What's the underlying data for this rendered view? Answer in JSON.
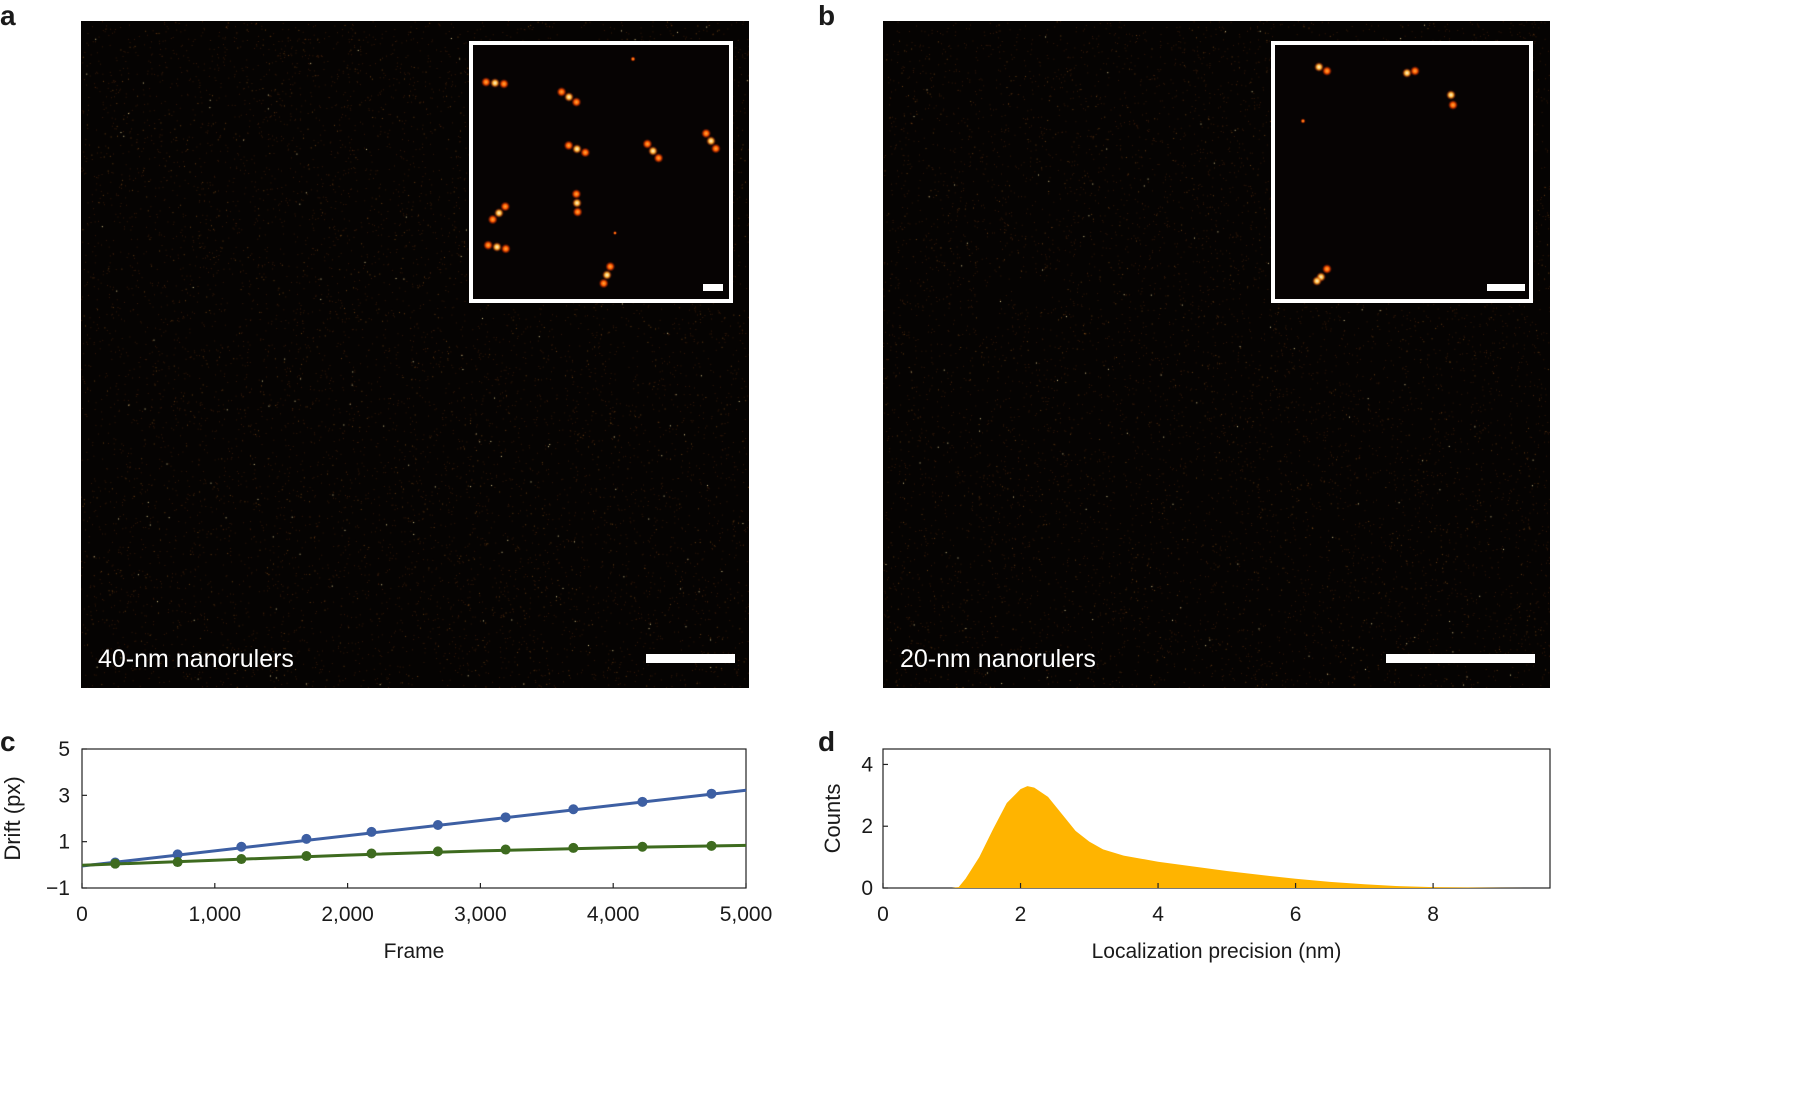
{
  "panels": {
    "a": {
      "letter": "a",
      "label": "40-nm nanorulers"
    },
    "b": {
      "letter": "b",
      "label": "20-nm nanorulers"
    },
    "c": {
      "letter": "c"
    },
    "d": {
      "letter": "d"
    }
  },
  "colors": {
    "background": "#050302",
    "blue_series": "#3d5fa3",
    "green_series": "#3e6b1f",
    "histogram": "#ffb400",
    "hot_spot": "#ff3a00",
    "white": "#ffffff"
  },
  "chart_data": [
    {
      "panel": "c",
      "type": "line",
      "xlabel": "Frame",
      "ylabel": "Drift (px)",
      "xlim": [
        0,
        5000
      ],
      "ylim": [
        -1,
        5
      ],
      "xticks": [
        0,
        1000,
        2000,
        3000,
        4000,
        5000
      ],
      "xtick_labels": [
        "0",
        "1,000",
        "2,000",
        "3,000",
        "4,000",
        "5,000"
      ],
      "yticks": [
        -1,
        1,
        3,
        5
      ],
      "ytick_labels": [
        "−1",
        "1",
        "3",
        "5"
      ],
      "x": [
        250,
        720,
        1200,
        1690,
        2180,
        2680,
        3190,
        3700,
        4220,
        4740
      ],
      "series": [
        {
          "color": "#3d5fa3",
          "values": [
            0.1,
            0.45,
            0.78,
            1.12,
            1.42,
            1.72,
            2.05,
            2.4,
            2.72,
            3.07
          ],
          "fit": [
            [
              0,
              -0.05
            ],
            [
              5000,
              3.22
            ]
          ]
        },
        {
          "color": "#3e6b1f",
          "values": [
            0.05,
            0.12,
            0.25,
            0.38,
            0.49,
            0.58,
            0.66,
            0.73,
            0.78,
            0.82
          ],
          "fit": [
            [
              0,
              -0.02
            ],
            [
              1000,
              0.2
            ],
            [
              2000,
              0.42
            ],
            [
              3000,
              0.6
            ],
            [
              4000,
              0.74
            ],
            [
              5000,
              0.84
            ]
          ]
        }
      ],
      "grid": false,
      "legend": "none"
    },
    {
      "panel": "d",
      "type": "area",
      "xlabel": "Localization precision (nm)",
      "ylabel": "Counts",
      "xlim": [
        0,
        9.7
      ],
      "ylim": [
        0,
        4.5
      ],
      "xticks": [
        0,
        2,
        4,
        6,
        8
      ],
      "xtick_labels": [
        "0",
        "2",
        "4",
        "6",
        "8"
      ],
      "yticks": [
        0,
        2,
        4
      ],
      "ytick_labels": [
        "0",
        "2",
        "4"
      ],
      "x": [
        0,
        1.0,
        1.1,
        1.2,
        1.4,
        1.6,
        1.8,
        2.0,
        2.1,
        2.2,
        2.4,
        2.6,
        2.8,
        3.0,
        3.2,
        3.5,
        4.0,
        4.5,
        5.0,
        5.5,
        6.0,
        6.5,
        7.0,
        7.5,
        8.0,
        8.5,
        9.0,
        9.5
      ],
      "values": [
        0,
        0,
        0.03,
        0.3,
        1.0,
        1.9,
        2.75,
        3.2,
        3.3,
        3.25,
        2.95,
        2.4,
        1.85,
        1.5,
        1.25,
        1.05,
        0.85,
        0.7,
        0.55,
        0.42,
        0.3,
        0.2,
        0.12,
        0.06,
        0.03,
        0.015,
        0.005,
        0
      ],
      "grid": false,
      "legend": "none"
    }
  ]
}
